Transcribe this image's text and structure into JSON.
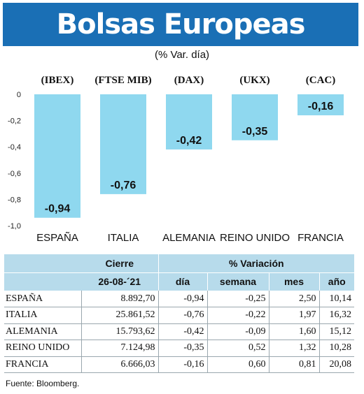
{
  "header": {
    "title": "Bolsas Europeas",
    "subtitle": "(% Var. día)"
  },
  "colors": {
    "banner": "#1a6fb5",
    "bar": "#8fd8ef",
    "table_header": "#b7dbeb"
  },
  "chart_data": {
    "type": "bar",
    "categories": [
      "ESPAÑA",
      "ITALIA",
      "ALEMANIA",
      "REINO UNIDO",
      "FRANCIA"
    ],
    "indices": [
      "(IBEX)",
      "(FTSE MIB)",
      "(DAX)",
      "(UKX)",
      "(CAC)"
    ],
    "values": [
      -0.94,
      -0.76,
      -0.42,
      -0.35,
      -0.16
    ],
    "value_labels": [
      "-0,94",
      "-0,76",
      "-0,42",
      "-0,35",
      "-0,16"
    ],
    "yticks": [
      0,
      -0.2,
      -0.4,
      -0.6,
      -0.8,
      -1.0
    ],
    "ytick_labels": [
      "0",
      "-0,2",
      "-0,4",
      "-0,6",
      "-0,8",
      "-1,0"
    ],
    "ylim": [
      -1.0,
      0
    ],
    "grid": false
  },
  "table": {
    "group_headers": {
      "close": "Cierre",
      "variation": "% Variación"
    },
    "columns": [
      "26-08-´21",
      "día",
      "semana",
      "mes",
      "año"
    ],
    "rows": [
      {
        "name": "ESPAÑA",
        "close": "8.892,70",
        "day": "-0,94",
        "week": "-0,25",
        "month": "2,50",
        "year": "10,14"
      },
      {
        "name": "ITALIA",
        "close": "25.861,52",
        "day": "-0,76",
        "week": "-0,22",
        "month": "1,97",
        "year": "16,32"
      },
      {
        "name": "ALEMANIA",
        "close": "15.793,62",
        "day": "-0,42",
        "week": "-0,09",
        "month": "1,60",
        "year": "15,12"
      },
      {
        "name": "REINO UNIDO",
        "close": "7.124,98",
        "day": "-0,35",
        "week": "0,52",
        "month": "1,32",
        "year": "10,28"
      },
      {
        "name": "FRANCIA",
        "close": "6.666,03",
        "day": "-0,16",
        "week": "0,60",
        "month": "0,81",
        "year": "20,08"
      }
    ]
  },
  "source": "Fuente: Bloomberg."
}
